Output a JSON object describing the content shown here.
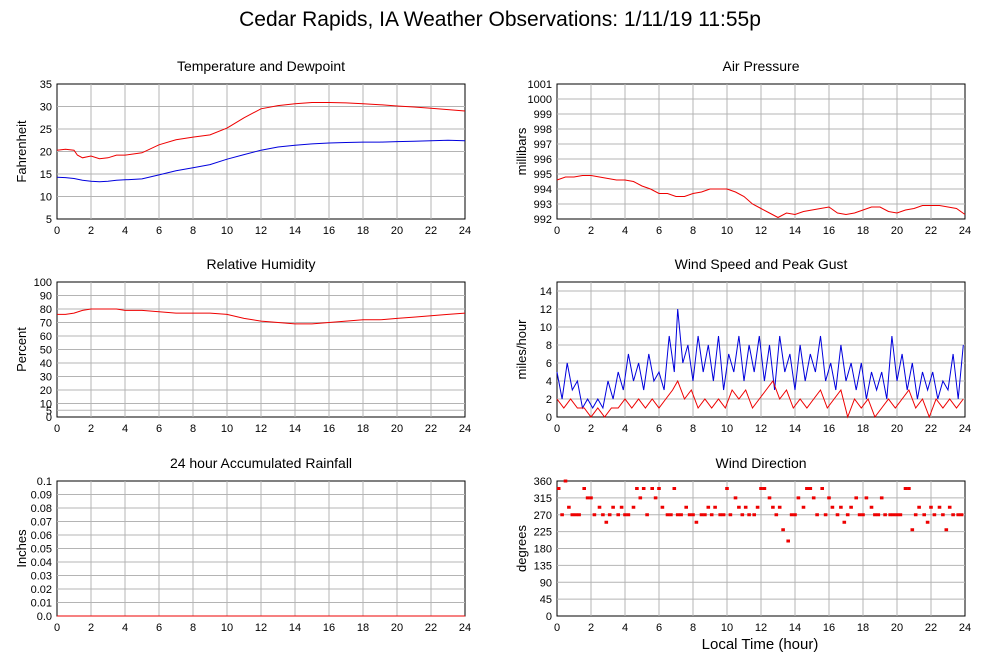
{
  "page": {
    "title": "Cedar Rapids, IA Weather Observations: 1/11/19 11:55p",
    "x_axis_label": "Local Time (hour)"
  },
  "colors": {
    "red": "#ee0000",
    "blue": "#0000dd",
    "grid": "#b4b4b4"
  },
  "chart_data": [
    {
      "id": "temperature",
      "type": "line",
      "title": "Temperature and Dewpoint",
      "ylabel": "Fahrenheit",
      "xlim": [
        0,
        24
      ],
      "ylim": [
        5,
        35
      ],
      "yticks": [
        5,
        10,
        15,
        20,
        25,
        30,
        35
      ],
      "xticks": [
        0,
        2,
        4,
        6,
        8,
        10,
        12,
        14,
        16,
        18,
        20,
        22,
        24
      ],
      "grid": true,
      "series": [
        {
          "color": "red",
          "x": [
            0,
            0.5,
            1,
            1.2,
            1.5,
            2,
            2.5,
            3,
            3.5,
            4,
            5,
            6,
            7,
            8,
            9,
            10,
            11,
            12,
            13,
            14,
            15,
            16,
            17,
            18,
            19,
            20,
            21,
            22,
            23,
            24
          ],
          "y": [
            20.3,
            20.5,
            20.3,
            19.2,
            18.6,
            19,
            18.4,
            18.6,
            19.2,
            19.2,
            19.7,
            21.5,
            22.6,
            23.2,
            23.7,
            25.2,
            27.5,
            29.5,
            30.2,
            30.6,
            30.9,
            30.9,
            30.8,
            30.6,
            30.4,
            30.1,
            29.9,
            29.6,
            29.3,
            29.0
          ]
        },
        {
          "color": "blue",
          "x": [
            0,
            0.5,
            1,
            1.5,
            2,
            2.5,
            3,
            3.5,
            4,
            5,
            6,
            7,
            8,
            9,
            10,
            11,
            12,
            13,
            14,
            15,
            16,
            17,
            18,
            19,
            20,
            21,
            22,
            23,
            24
          ],
          "y": [
            14.3,
            14.2,
            14.0,
            13.6,
            13.4,
            13.3,
            13.4,
            13.6,
            13.7,
            13.9,
            14.8,
            15.7,
            16.4,
            17.1,
            18.3,
            19.3,
            20.3,
            21.0,
            21.4,
            21.7,
            21.9,
            22.0,
            22.1,
            22.1,
            22.2,
            22.3,
            22.4,
            22.5,
            22.4
          ]
        }
      ]
    },
    {
      "id": "pressure",
      "type": "line",
      "title": "Air Pressure",
      "ylabel": "millibars",
      "xlim": [
        0,
        24
      ],
      "ylim": [
        992,
        1001
      ],
      "yticks": [
        992,
        993,
        994,
        995,
        996,
        997,
        998,
        999,
        1000,
        1001
      ],
      "xticks": [
        0,
        2,
        4,
        6,
        8,
        10,
        12,
        14,
        16,
        18,
        20,
        22,
        24
      ],
      "grid": true,
      "series": [
        {
          "color": "red",
          "x": [
            0,
            0.5,
            1,
            1.5,
            2,
            2.5,
            3,
            3.5,
            4,
            4.5,
            5,
            5.5,
            6,
            6.5,
            7,
            7.5,
            8,
            8.5,
            9,
            9.5,
            10,
            10.5,
            11,
            11.5,
            12,
            12.5,
            13,
            13.5,
            14,
            14.5,
            15,
            15.5,
            16,
            16.5,
            17,
            17.5,
            18,
            18.5,
            19,
            19.5,
            20,
            20.5,
            21,
            21.5,
            22,
            22.5,
            23,
            23.5,
            24
          ],
          "y": [
            994.6,
            994.8,
            994.8,
            994.9,
            994.9,
            994.8,
            994.7,
            994.6,
            994.6,
            994.5,
            994.2,
            994.0,
            993.7,
            993.7,
            993.5,
            993.5,
            993.7,
            993.8,
            994.0,
            994.0,
            994.0,
            993.8,
            993.5,
            993.0,
            992.7,
            992.4,
            992.1,
            992.4,
            992.3,
            992.5,
            992.6,
            992.7,
            992.8,
            992.4,
            992.3,
            992.4,
            992.6,
            992.8,
            992.8,
            992.5,
            992.4,
            992.6,
            992.7,
            992.9,
            992.9,
            992.9,
            992.8,
            992.7,
            992.3
          ]
        }
      ]
    },
    {
      "id": "humidity",
      "type": "line",
      "title": "Relative Humidity",
      "ylabel": "Percent",
      "xlim": [
        0,
        24
      ],
      "ylim": [
        0,
        100
      ],
      "yticks": [
        0,
        5,
        10,
        20,
        30,
        40,
        50,
        60,
        70,
        80,
        90,
        100
      ],
      "xticks": [
        0,
        2,
        4,
        6,
        8,
        10,
        12,
        14,
        16,
        18,
        20,
        22,
        24
      ],
      "grid": true,
      "series": [
        {
          "color": "red",
          "x": [
            0,
            0.5,
            1,
            1.5,
            2,
            2.5,
            3,
            3.5,
            4,
            5,
            6,
            7,
            8,
            9,
            10,
            11,
            12,
            13,
            14,
            15,
            16,
            17,
            18,
            19,
            20,
            21,
            22,
            23,
            24
          ],
          "y": [
            76,
            76,
            77,
            79,
            80,
            80,
            80,
            80,
            79,
            79,
            78,
            77,
            77,
            77,
            76,
            73,
            71,
            70,
            69,
            69,
            70,
            71,
            72,
            72,
            73,
            74,
            75,
            76,
            77
          ]
        }
      ]
    },
    {
      "id": "wind-speed",
      "type": "line",
      "title": "Wind Speed and Peak Gust",
      "ylabel": "miles/hour",
      "xlim": [
        0,
        24
      ],
      "ylim": [
        0,
        15
      ],
      "yticks": [
        0,
        2,
        4,
        6,
        8,
        10,
        12,
        14
      ],
      "xticks": [
        0,
        2,
        4,
        6,
        8,
        10,
        12,
        14,
        16,
        18,
        20,
        22,
        24
      ],
      "grid": true,
      "series": [
        {
          "color": "blue",
          "x": [
            0,
            0.3,
            0.6,
            0.9,
            1.2,
            1.5,
            1.8,
            2.1,
            2.4,
            2.7,
            3.0,
            3.3,
            3.6,
            3.9,
            4.2,
            4.5,
            4.8,
            5.1,
            5.4,
            5.7,
            6.0,
            6.3,
            6.6,
            6.9,
            7.1,
            7.4,
            7.7,
            8.0,
            8.3,
            8.6,
            8.9,
            9.2,
            9.5,
            9.8,
            10.1,
            10.4,
            10.7,
            11.0,
            11.3,
            11.6,
            11.9,
            12.2,
            12.5,
            12.8,
            13.1,
            13.4,
            13.7,
            14.0,
            14.3,
            14.6,
            14.9,
            15.2,
            15.5,
            15.8,
            16.1,
            16.4,
            16.7,
            17.0,
            17.3,
            17.6,
            17.9,
            18.2,
            18.5,
            18.8,
            19.1,
            19.4,
            19.7,
            20.0,
            20.3,
            20.6,
            20.9,
            21.2,
            21.5,
            21.8,
            22.1,
            22.4,
            22.7,
            23.0,
            23.3,
            23.6,
            23.9
          ],
          "y": [
            5,
            2,
            6,
            3,
            4,
            1,
            2,
            1,
            2,
            1,
            4,
            2,
            5,
            3,
            7,
            4,
            6,
            3,
            7,
            4,
            5,
            3,
            9,
            5,
            12,
            6,
            8,
            4,
            9,
            5,
            8,
            4,
            9,
            3,
            7,
            5,
            9,
            4,
            8,
            5,
            9,
            4,
            8,
            3,
            9,
            5,
            7,
            3,
            8,
            4,
            7,
            5,
            9,
            4,
            6,
            3,
            8,
            4,
            6,
            3,
            6,
            2,
            5,
            3,
            5,
            2,
            9,
            4,
            7,
            3,
            6,
            2,
            5,
            3,
            5,
            2,
            4,
            3,
            7,
            2,
            8
          ]
        },
        {
          "color": "red",
          "x": [
            0,
            0.4,
            0.8,
            1.2,
            1.6,
            2.0,
            2.4,
            2.8,
            3.2,
            3.6,
            4.0,
            4.4,
            4.8,
            5.2,
            5.6,
            6.0,
            6.4,
            6.8,
            7.1,
            7.5,
            7.9,
            8.3,
            8.7,
            9.1,
            9.5,
            9.9,
            10.3,
            10.7,
            11.1,
            11.5,
            11.9,
            12.3,
            12.7,
            13.1,
            13.5,
            13.9,
            14.3,
            14.7,
            15.1,
            15.5,
            15.9,
            16.3,
            16.7,
            17.1,
            17.5,
            17.9,
            18.3,
            18.7,
            19.1,
            19.5,
            19.9,
            20.3,
            20.7,
            21.1,
            21.5,
            21.9,
            22.3,
            22.7,
            23.1,
            23.5,
            23.9
          ],
          "y": [
            2,
            1,
            2,
            1,
            1,
            0,
            1,
            0,
            1,
            1,
            2,
            1,
            2,
            1,
            2,
            1,
            2,
            3,
            4,
            2,
            3,
            1,
            2,
            1,
            2,
            1,
            3,
            2,
            3,
            1,
            2,
            3,
            4,
            2,
            3,
            1,
            2,
            1,
            2,
            3,
            1,
            2,
            3,
            0,
            2,
            1,
            2,
            0,
            1,
            2,
            1,
            2,
            3,
            1,
            2,
            0,
            2,
            1,
            2,
            1,
            2
          ]
        }
      ]
    },
    {
      "id": "rainfall",
      "type": "line",
      "title": "24 hour Accumulated Rainfall",
      "ylabel": "Inches",
      "xlim": [
        0,
        24
      ],
      "ylim": [
        0,
        0.1
      ],
      "yticks": [
        0.0,
        0.01,
        0.02,
        0.03,
        0.04,
        0.05,
        0.06,
        0.07,
        0.08,
        0.09,
        0.1
      ],
      "ytick_labels": [
        "0.0",
        "0.01",
        "0.02",
        "0.03",
        "0.04",
        "0.05",
        "0.06",
        "0.07",
        "0.08",
        "0.09",
        "0.1"
      ],
      "xticks": [
        0,
        2,
        4,
        6,
        8,
        10,
        12,
        14,
        16,
        18,
        20,
        22,
        24
      ],
      "grid": true,
      "series": [
        {
          "color": "red",
          "x": [
            0,
            24
          ],
          "y": [
            0,
            0
          ]
        }
      ]
    },
    {
      "id": "wind-direction",
      "type": "scatter",
      "title": "Wind Direction",
      "ylabel": "degrees",
      "xlim": [
        0,
        24
      ],
      "ylim": [
        0,
        360
      ],
      "yticks": [
        0,
        45,
        90,
        135,
        180,
        225,
        270,
        315,
        360
      ],
      "xticks": [
        0,
        2,
        4,
        6,
        8,
        10,
        12,
        14,
        16,
        18,
        20,
        22,
        24
      ],
      "grid": true,
      "series": [
        {
          "color": "red",
          "x": [
            0.1,
            0.3,
            0.5,
            0.7,
            0.9,
            1.1,
            1.3,
            1.6,
            1.8,
            2.0,
            2.2,
            2.5,
            2.7,
            2.9,
            3.1,
            3.3,
            3.6,
            3.8,
            4.0,
            4.2,
            4.5,
            4.7,
            4.9,
            5.1,
            5.3,
            5.6,
            5.8,
            6.0,
            6.2,
            6.5,
            6.7,
            6.9,
            7.1,
            7.3,
            7.6,
            7.8,
            8.0,
            8.2,
            8.5,
            8.7,
            8.9,
            9.1,
            9.3,
            9.6,
            9.8,
            10.0,
            10.2,
            10.5,
            10.7,
            10.9,
            11.1,
            11.3,
            11.6,
            11.8,
            12.0,
            12.2,
            12.5,
            12.7,
            12.9,
            13.1,
            13.3,
            13.6,
            13.8,
            14.0,
            14.2,
            14.5,
            14.7,
            14.9,
            15.1,
            15.3,
            15.6,
            15.8,
            16.0,
            16.2,
            16.5,
            16.7,
            16.9,
            17.1,
            17.3,
            17.6,
            17.8,
            18.0,
            18.2,
            18.5,
            18.7,
            18.9,
            19.1,
            19.3,
            19.6,
            19.8,
            20.0,
            20.2,
            20.5,
            20.7,
            20.9,
            21.1,
            21.3,
            21.6,
            21.8,
            22.0,
            22.2,
            22.5,
            22.7,
            22.9,
            23.1,
            23.3,
            23.6,
            23.8
          ],
          "y": [
            340,
            270,
            360,
            290,
            270,
            270,
            270,
            340,
            315,
            315,
            270,
            290,
            270,
            250,
            270,
            290,
            270,
            290,
            270,
            270,
            290,
            340,
            315,
            340,
            270,
            340,
            315,
            340,
            290,
            270,
            270,
            340,
            270,
            270,
            290,
            270,
            270,
            250,
            270,
            270,
            290,
            270,
            290,
            270,
            270,
            340,
            270,
            315,
            290,
            270,
            290,
            270,
            270,
            290,
            340,
            340,
            315,
            290,
            270,
            290,
            230,
            200,
            270,
            270,
            315,
            290,
            340,
            340,
            315,
            270,
            340,
            270,
            315,
            290,
            270,
            290,
            250,
            270,
            290,
            315,
            270,
            270,
            315,
            290,
            270,
            270,
            315,
            270,
            270,
            270,
            270,
            270,
            340,
            340,
            230,
            270,
            290,
            270,
            250,
            290,
            270,
            290,
            270,
            230,
            290,
            270,
            270,
            270
          ]
        }
      ]
    }
  ]
}
